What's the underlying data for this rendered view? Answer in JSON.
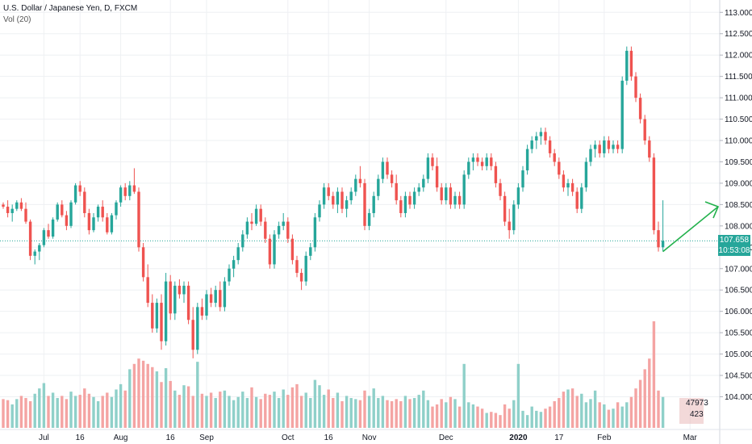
{
  "legend": {
    "title": "U.S. Dollar / Japanese Yen, D, FXCM",
    "volume": "Vol (20)"
  },
  "price_box": {
    "price": "107.658",
    "countdown": "10:53:08"
  },
  "volume_box": {
    "value1": "47973",
    "value2": "423"
  },
  "colors": {
    "up": "#26a69a",
    "down": "#ef5350",
    "vol_up": "#8fd0c9",
    "vol_down": "#f4a4a3",
    "grid": "#eef0f3",
    "arrow": "#22b14c",
    "price_line": "#26a69a"
  },
  "chart_data": {
    "type": "candlestick",
    "y_axis": {
      "ticks": [
        "113.000",
        "112.500",
        "112.000",
        "111.500",
        "111.000",
        "110.500",
        "110.000",
        "109.500",
        "109.000",
        "108.500",
        "108.000",
        "107.500",
        "107.000",
        "106.500",
        "106.000",
        "105.500",
        "105.000",
        "104.500",
        "104.000"
      ],
      "range": [
        103.65,
        113.1
      ]
    },
    "x_axis": {
      "ticks": [
        {
          "label": "Jul",
          "index": 9
        },
        {
          "label": "16",
          "index": 17
        },
        {
          "label": "Aug",
          "index": 26
        },
        {
          "label": "16",
          "index": 37
        },
        {
          "label": "Sep",
          "index": 45
        },
        {
          "label": "Oct",
          "index": 63
        },
        {
          "label": "16",
          "index": 72
        },
        {
          "label": "Nov",
          "index": 81
        },
        {
          "label": "Dec",
          "index": 98
        },
        {
          "label": "2020",
          "index": 114
        },
        {
          "label": "17",
          "index": 123
        },
        {
          "label": "Feb",
          "index": 133
        },
        {
          "label": "Mar",
          "index": 152
        }
      ]
    },
    "candles": [
      [
        108.5,
        108.55,
        108.4,
        108.45
      ],
      [
        108.45,
        108.6,
        108.2,
        108.3
      ],
      [
        108.3,
        108.5,
        108.1,
        108.4
      ],
      [
        108.4,
        108.6,
        108.35,
        108.55
      ],
      [
        108.55,
        108.65,
        108.35,
        108.4
      ],
      [
        108.4,
        108.55,
        108.05,
        108.1
      ],
      [
        108.1,
        108.15,
        107.2,
        107.3
      ],
      [
        107.3,
        107.45,
        107.1,
        107.4
      ],
      [
        107.4,
        107.6,
        107.2,
        107.55
      ],
      [
        107.55,
        107.95,
        107.5,
        107.9
      ],
      [
        107.9,
        108.05,
        107.7,
        107.75
      ],
      [
        107.75,
        108.2,
        107.7,
        108.15
      ],
      [
        108.15,
        108.55,
        108.1,
        108.5
      ],
      [
        108.5,
        108.6,
        108.2,
        108.25
      ],
      [
        108.25,
        108.35,
        107.9,
        108.0
      ],
      [
        108.0,
        108.6,
        107.95,
        108.55
      ],
      [
        108.55,
        109.0,
        108.5,
        108.95
      ],
      [
        108.95,
        109.05,
        108.7,
        108.8
      ],
      [
        108.8,
        108.9,
        108.2,
        108.3
      ],
      [
        108.3,
        108.4,
        107.8,
        107.9
      ],
      [
        107.9,
        108.3,
        107.85,
        108.2
      ],
      [
        108.2,
        108.5,
        108.1,
        108.45
      ],
      [
        108.45,
        108.6,
        108.1,
        108.2
      ],
      [
        108.2,
        108.3,
        107.8,
        107.85
      ],
      [
        107.85,
        108.3,
        107.8,
        108.25
      ],
      [
        108.25,
        108.6,
        108.15,
        108.55
      ],
      [
        108.55,
        108.95,
        108.45,
        108.9
      ],
      [
        108.9,
        109.0,
        108.6,
        108.7
      ],
      [
        108.7,
        109.05,
        108.6,
        108.95
      ],
      [
        108.95,
        109.35,
        108.75,
        108.8
      ],
      [
        108.8,
        108.9,
        107.4,
        107.5
      ],
      [
        107.5,
        107.6,
        106.7,
        106.8
      ],
      [
        106.8,
        107.1,
        106.1,
        106.2
      ],
      [
        106.2,
        106.4,
        105.5,
        105.6
      ],
      [
        105.6,
        106.3,
        105.5,
        106.2
      ],
      [
        106.2,
        106.4,
        105.1,
        105.3
      ],
      [
        105.3,
        106.9,
        105.2,
        106.7
      ],
      [
        106.7,
        106.85,
        105.8,
        105.95
      ],
      [
        105.95,
        106.7,
        105.8,
        106.6
      ],
      [
        106.6,
        106.75,
        106.3,
        106.4
      ],
      [
        106.4,
        106.7,
        106.2,
        106.6
      ],
      [
        106.6,
        106.7,
        105.7,
        105.8
      ],
      [
        105.8,
        106.1,
        104.9,
        105.1
      ],
      [
        105.1,
        106.2,
        105.0,
        106.1
      ],
      [
        106.1,
        106.3,
        105.8,
        105.9
      ],
      [
        105.9,
        106.5,
        105.8,
        106.4
      ],
      [
        106.4,
        106.55,
        106.1,
        106.2
      ],
      [
        106.2,
        106.6,
        106.1,
        106.5
      ],
      [
        106.5,
        106.7,
        106.0,
        106.1
      ],
      [
        106.1,
        106.8,
        106.0,
        106.7
      ],
      [
        106.7,
        107.1,
        106.6,
        107.0
      ],
      [
        107.0,
        107.3,
        106.8,
        107.2
      ],
      [
        107.2,
        107.6,
        107.1,
        107.5
      ],
      [
        107.5,
        107.9,
        107.4,
        107.8
      ],
      [
        107.8,
        108.2,
        107.7,
        108.1
      ],
      [
        108.1,
        108.3,
        107.9,
        108.05
      ],
      [
        108.05,
        108.5,
        108.0,
        108.4
      ],
      [
        108.4,
        108.5,
        108.0,
        108.1
      ],
      [
        108.1,
        108.2,
        107.6,
        107.7
      ],
      [
        107.7,
        107.8,
        107.0,
        107.1
      ],
      [
        107.1,
        107.9,
        107.0,
        107.8
      ],
      [
        107.8,
        108.1,
        107.7,
        108.0
      ],
      [
        108.0,
        108.3,
        107.9,
        108.1
      ],
      [
        108.1,
        108.2,
        107.6,
        107.7
      ],
      [
        107.7,
        107.8,
        107.1,
        107.2
      ],
      [
        107.2,
        107.3,
        106.8,
        106.9
      ],
      [
        106.9,
        107.0,
        106.5,
        106.7
      ],
      [
        106.7,
        107.4,
        106.6,
        107.3
      ],
      [
        107.3,
        107.6,
        107.2,
        107.5
      ],
      [
        107.5,
        108.3,
        107.4,
        108.2
      ],
      [
        108.2,
        108.6,
        108.1,
        108.5
      ],
      [
        108.5,
        109.0,
        108.4,
        108.9
      ],
      [
        108.9,
        109.0,
        108.6,
        108.7
      ],
      [
        108.7,
        108.8,
        108.4,
        108.5
      ],
      [
        108.5,
        108.9,
        108.3,
        108.8
      ],
      [
        108.8,
        108.9,
        108.3,
        108.4
      ],
      [
        108.4,
        108.7,
        108.2,
        108.6
      ],
      [
        108.6,
        108.9,
        108.5,
        108.8
      ],
      [
        108.8,
        109.2,
        108.7,
        109.1
      ],
      [
        109.1,
        109.4,
        108.9,
        109.0
      ],
      [
        109.0,
        109.1,
        107.9,
        108.0
      ],
      [
        108.0,
        108.4,
        107.9,
        108.3
      ],
      [
        108.3,
        108.8,
        108.2,
        108.7
      ],
      [
        108.7,
        109.2,
        108.6,
        109.1
      ],
      [
        109.1,
        109.6,
        109.0,
        109.5
      ],
      [
        109.5,
        109.6,
        109.1,
        109.2
      ],
      [
        109.2,
        109.3,
        108.9,
        109.0
      ],
      [
        109.0,
        109.2,
        108.5,
        108.6
      ],
      [
        108.6,
        108.7,
        108.2,
        108.3
      ],
      [
        108.3,
        108.8,
        108.2,
        108.7
      ],
      [
        108.7,
        108.8,
        108.4,
        108.5
      ],
      [
        108.5,
        108.9,
        108.4,
        108.8
      ],
      [
        108.8,
        109.0,
        108.7,
        108.9
      ],
      [
        108.9,
        109.2,
        108.8,
        109.1
      ],
      [
        109.1,
        109.7,
        109.0,
        109.6
      ],
      [
        109.6,
        109.7,
        109.3,
        109.4
      ],
      [
        109.4,
        109.6,
        108.8,
        108.9
      ],
      [
        108.9,
        109.0,
        108.5,
        108.6
      ],
      [
        108.6,
        109.0,
        108.5,
        108.9
      ],
      [
        108.9,
        109.0,
        108.4,
        108.5
      ],
      [
        108.5,
        108.8,
        108.4,
        108.7
      ],
      [
        108.7,
        108.8,
        108.4,
        108.5
      ],
      [
        108.5,
        109.3,
        108.4,
        109.2
      ],
      [
        109.2,
        109.6,
        109.1,
        109.5
      ],
      [
        109.5,
        109.7,
        109.3,
        109.6
      ],
      [
        109.6,
        109.7,
        109.4,
        109.5
      ],
      [
        109.5,
        109.6,
        109.3,
        109.4
      ],
      [
        109.4,
        109.7,
        109.3,
        109.6
      ],
      [
        109.6,
        109.7,
        109.3,
        109.4
      ],
      [
        109.4,
        109.5,
        108.9,
        109.0
      ],
      [
        109.0,
        109.1,
        108.6,
        108.7
      ],
      [
        108.7,
        108.8,
        108.0,
        108.1
      ],
      [
        108.1,
        108.4,
        107.7,
        107.9
      ],
      [
        107.9,
        108.6,
        107.8,
        108.5
      ],
      [
        108.5,
        109.0,
        108.4,
        108.9
      ],
      [
        108.9,
        109.4,
        108.8,
        109.3
      ],
      [
        109.3,
        109.9,
        109.2,
        109.8
      ],
      [
        109.8,
        110.1,
        109.7,
        110.0
      ],
      [
        110.0,
        110.2,
        109.8,
        110.1
      ],
      [
        110.1,
        110.3,
        109.9,
        110.2
      ],
      [
        110.2,
        110.3,
        109.9,
        110.0
      ],
      [
        110.0,
        110.1,
        109.6,
        109.7
      ],
      [
        109.7,
        109.8,
        109.4,
        109.5
      ],
      [
        109.5,
        109.6,
        109.1,
        109.2
      ],
      [
        109.2,
        109.3,
        108.8,
        108.9
      ],
      [
        108.9,
        109.1,
        108.7,
        109.0
      ],
      [
        109.0,
        109.1,
        108.7,
        108.8
      ],
      [
        108.8,
        108.9,
        108.3,
        108.4
      ],
      [
        108.4,
        109.0,
        108.3,
        108.9
      ],
      [
        108.9,
        109.6,
        108.8,
        109.5
      ],
      [
        109.5,
        109.9,
        109.4,
        109.8
      ],
      [
        109.8,
        110.0,
        109.6,
        109.9
      ],
      [
        109.9,
        110.0,
        109.6,
        109.7
      ],
      [
        109.7,
        110.1,
        109.6,
        110.0
      ],
      [
        110.0,
        110.1,
        109.7,
        109.8
      ],
      [
        109.8,
        110.0,
        109.7,
        109.9
      ],
      [
        109.9,
        110.0,
        109.7,
        109.8
      ],
      [
        109.8,
        111.5,
        109.7,
        111.4
      ],
      [
        111.4,
        112.2,
        111.3,
        112.1
      ],
      [
        112.1,
        112.2,
        111.4,
        111.5
      ],
      [
        111.5,
        111.6,
        110.9,
        111.0
      ],
      [
        111.0,
        111.1,
        110.4,
        110.5
      ],
      [
        110.5,
        110.6,
        109.9,
        110.0
      ],
      [
        110.0,
        110.1,
        109.5,
        109.6
      ],
      [
        109.6,
        109.7,
        107.8,
        107.9
      ],
      [
        107.9,
        108.1,
        107.4,
        107.5
      ],
      [
        107.5,
        108.6,
        107.4,
        107.65
      ]
    ],
    "volume": [
      0.27,
      0.26,
      0.22,
      0.27,
      0.3,
      0.28,
      0.25,
      0.32,
      0.37,
      0.42,
      0.3,
      0.33,
      0.28,
      0.3,
      0.27,
      0.34,
      0.3,
      0.31,
      0.37,
      0.32,
      0.29,
      0.25,
      0.3,
      0.33,
      0.29,
      0.36,
      0.41,
      0.35,
      0.55,
      0.6,
      0.65,
      0.63,
      0.6,
      0.57,
      0.53,
      0.43,
      0.56,
      0.44,
      0.35,
      0.31,
      0.4,
      0.39,
      0.3,
      0.62,
      0.32,
      0.3,
      0.33,
      0.28,
      0.34,
      0.35,
      0.3,
      0.26,
      0.29,
      0.34,
      0.28,
      0.38,
      0.29,
      0.27,
      0.32,
      0.31,
      0.34,
      0.28,
      0.36,
      0.31,
      0.38,
      0.41,
      0.3,
      0.33,
      0.28,
      0.45,
      0.4,
      0.31,
      0.36,
      0.28,
      0.33,
      0.25,
      0.3,
      0.28,
      0.27,
      0.26,
      0.35,
      0.3,
      0.37,
      0.28,
      0.3,
      0.26,
      0.25,
      0.27,
      0.25,
      0.3,
      0.27,
      0.28,
      0.31,
      0.35,
      0.26,
      0.2,
      0.22,
      0.27,
      0.24,
      0.29,
      0.27,
      0.2,
      0.6,
      0.24,
      0.22,
      0.2,
      0.18,
      0.14,
      0.15,
      0.14,
      0.12,
      0.22,
      0.18,
      0.26,
      0.6,
      0.16,
      0.12,
      0.2,
      0.16,
      0.15,
      0.18,
      0.2,
      0.25,
      0.28,
      0.34,
      0.36,
      0.37,
      0.3,
      0.32,
      0.24,
      0.27,
      0.35,
      0.24,
      0.22,
      0.17,
      0.18,
      0.24,
      0.2,
      0.24,
      0.29,
      0.37,
      0.45,
      0.55,
      0.65,
      1.0,
      0.35,
      0.29
    ]
  }
}
